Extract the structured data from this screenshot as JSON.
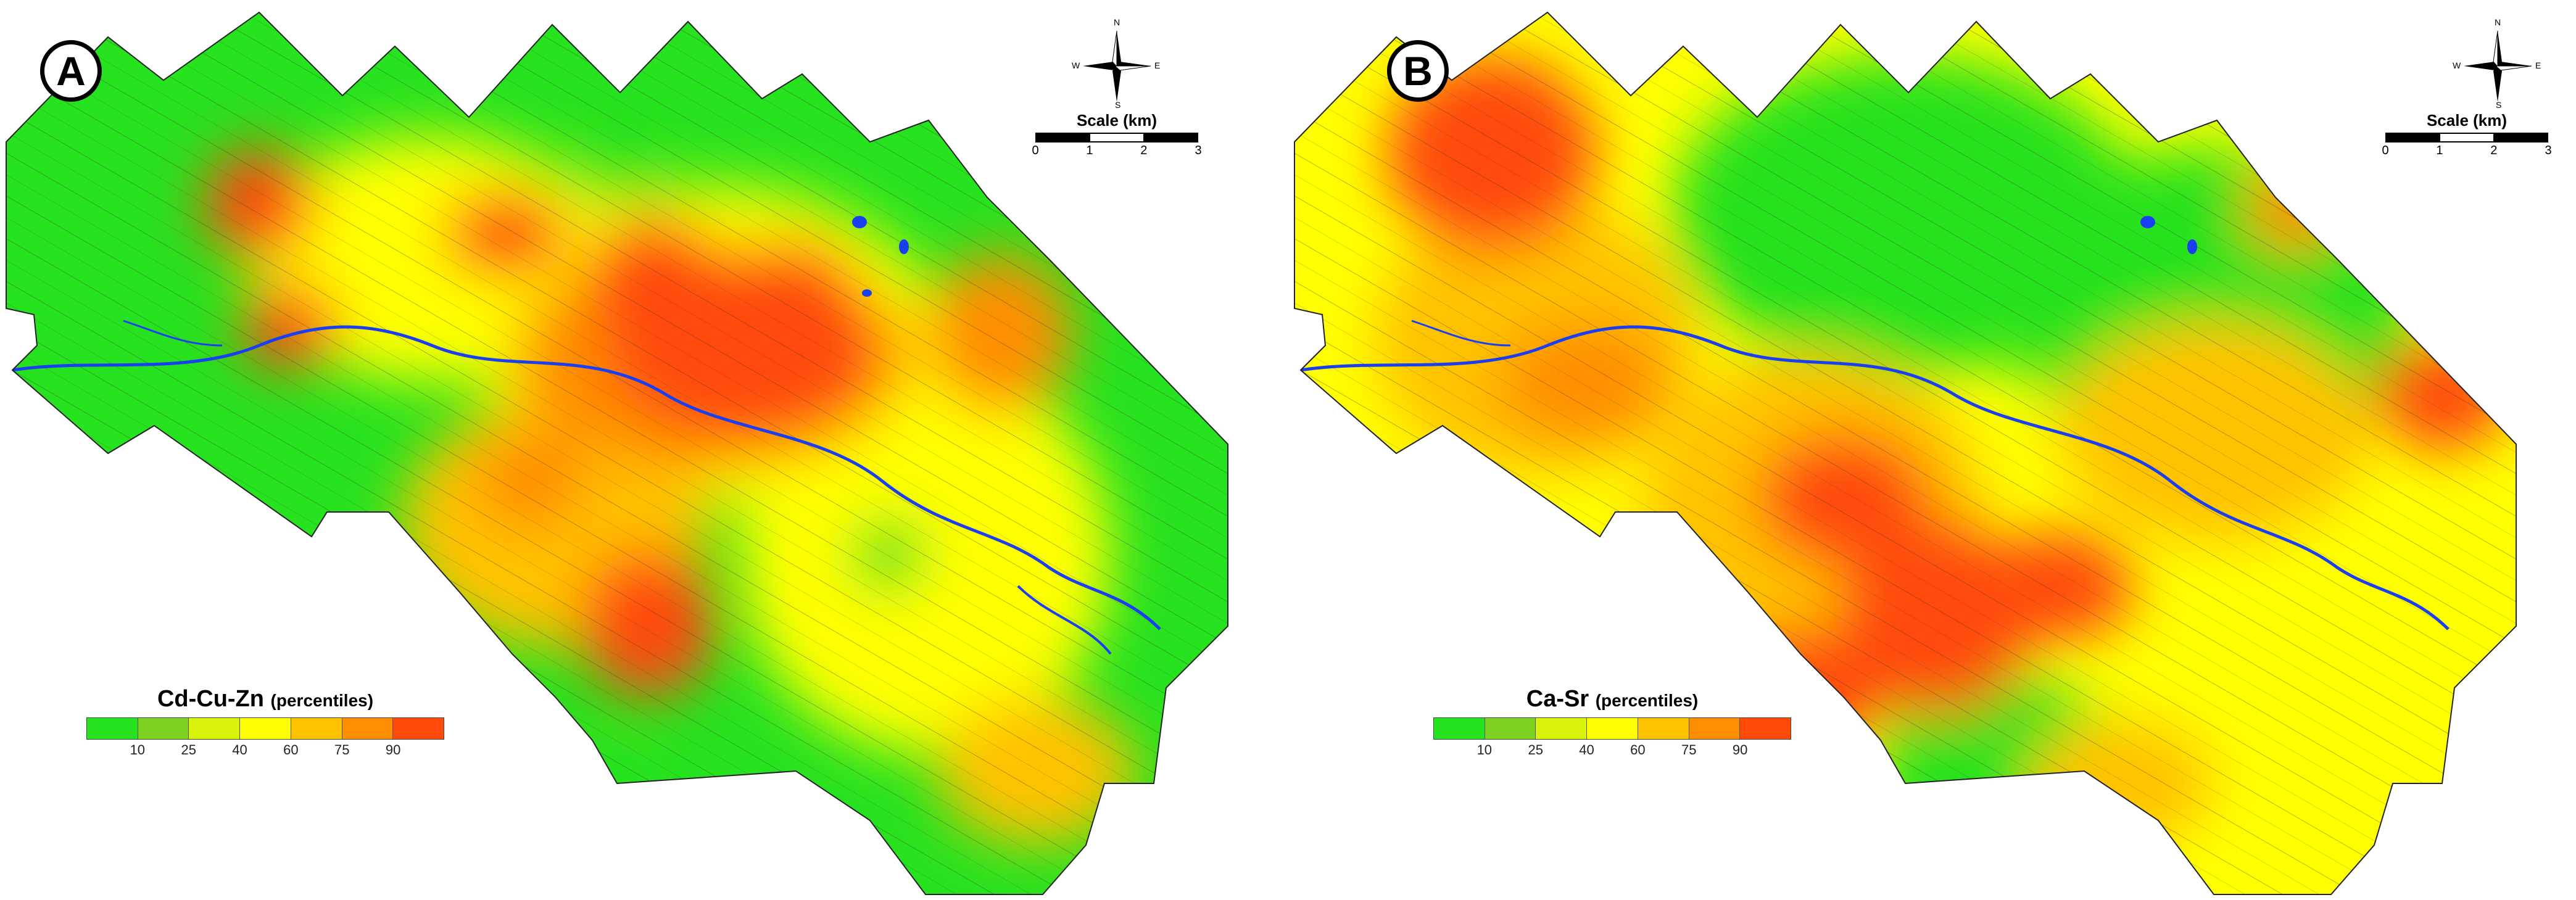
{
  "legend_colors": [
    "#27e21f",
    "#7ed321",
    "#d8f20a",
    "#ffff00",
    "#ffc200",
    "#ff8e00",
    "#ff4a0a"
  ],
  "legend_ticks": [
    "10",
    "25",
    "40",
    "60",
    "75",
    "90"
  ],
  "river_color": "#1a3ff0",
  "compass": {
    "n": "N",
    "s": "S",
    "w": "W",
    "e": "E"
  },
  "scale": {
    "title": "Scale (km)",
    "ticks": [
      "0",
      "1",
      "2",
      "3"
    ]
  },
  "panels": [
    {
      "label": "A",
      "legend_title": "Cd-Cu-Zn",
      "legend_sub": "(percentiles)"
    },
    {
      "label": "B",
      "legend_title": "Ca-Sr",
      "legend_sub": "(percentiles)"
    }
  ]
}
